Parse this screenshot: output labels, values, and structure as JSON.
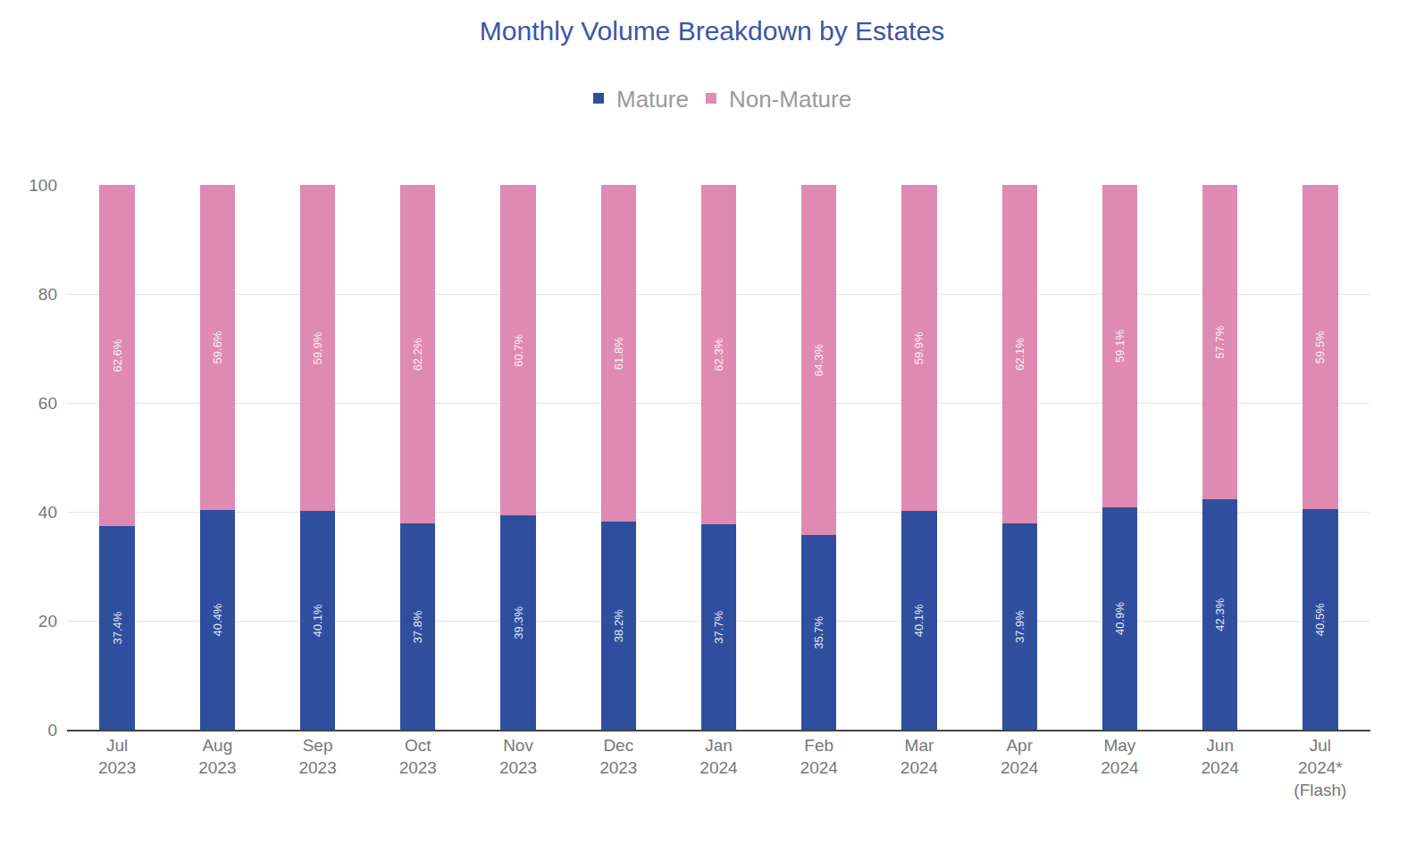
{
  "chart_data": {
    "type": "bar",
    "title": "Monthly Volume Breakdown by Estates",
    "stacked": true,
    "data_labels": true,
    "grid": true,
    "legend": "top",
    "categories": [
      "Jul 2023",
      "Aug 2023",
      "Sep 2023",
      "Oct 2023",
      "Nov 2023",
      "Dec 2023",
      "Jan 2024",
      "Feb 2024",
      "Mar 2024",
      "Apr 2024",
      "May 2024",
      "Jun 2024",
      "Jul 2024* (Flash)"
    ],
    "series": [
      {
        "name": "Mature",
        "color": "#2f4f9e",
        "values": [
          37.4,
          40.4,
          40.1,
          37.8,
          39.3,
          38.2,
          37.7,
          35.7,
          40.1,
          37.9,
          40.9,
          42.3,
          40.5
        ],
        "value_labels": [
          "37.4%",
          "40.4%",
          "40.1%",
          "37.8%",
          "39.3%",
          "38.2%",
          "37.7%",
          "35.7%",
          "40.1%",
          "37.9%",
          "40.9%",
          "42.3%",
          "40.5%"
        ]
      },
      {
        "name": "Non-Mature",
        "color": "#df8ab3",
        "values": [
          62.6,
          59.6,
          59.9,
          62.2,
          60.7,
          61.8,
          62.3,
          64.3,
          59.9,
          62.1,
          59.1,
          57.7,
          59.5
        ],
        "value_labels": [
          "62.6%",
          "59.6%",
          "59.9%",
          "62.2%",
          "60.7%",
          "61.8%",
          "62.3%",
          "64.3%",
          "59.9%",
          "62.1%",
          "59.1%",
          "57.7%",
          "59.5%"
        ]
      }
    ],
    "ylim": [
      0,
      100
    ],
    "yticks": [
      0,
      20,
      40,
      60,
      80,
      100
    ]
  }
}
